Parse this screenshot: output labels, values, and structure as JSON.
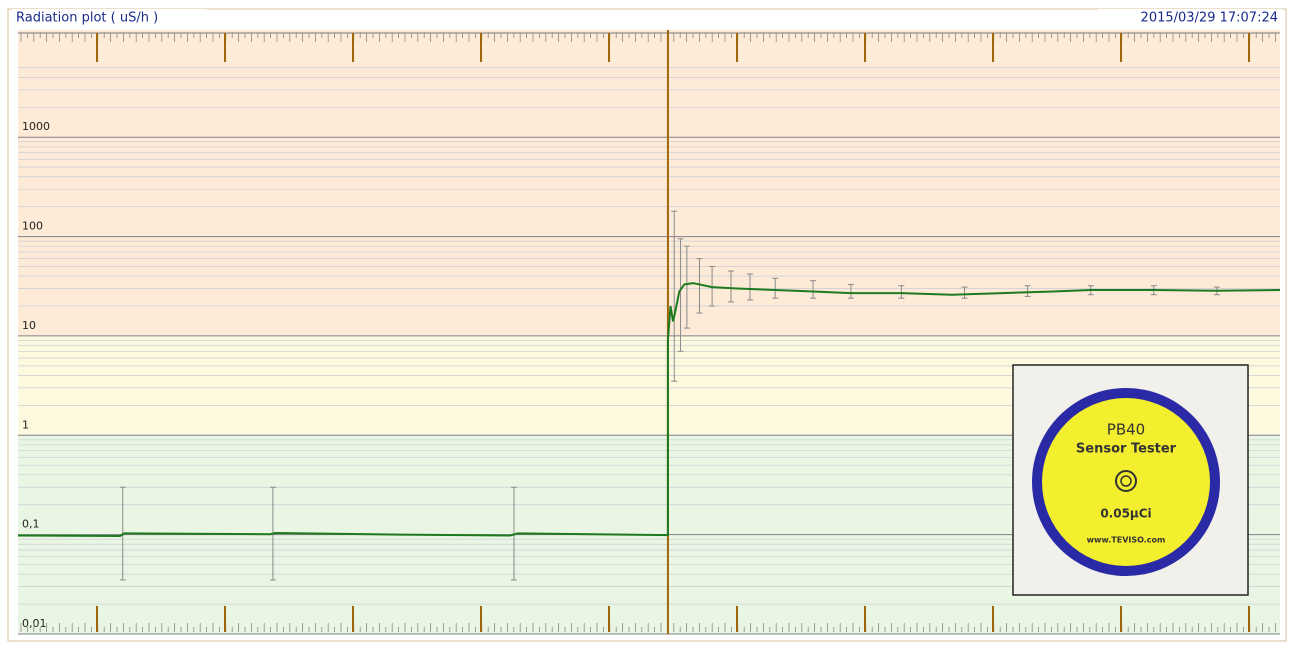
{
  "chart_data": {
    "type": "line",
    "title": "Radiation plot ( uS/h )",
    "timestamp": "2015/03/29 17:07:24",
    "log_y": true,
    "grid": true,
    "ylim": [
      0.01,
      12000
    ],
    "yticks": [
      {
        "value": 0.01,
        "label": "0,01"
      },
      {
        "value": 0.1,
        "label": "0,1"
      },
      1,
      10,
      100,
      1000
    ],
    "xlim": [
      0,
      100
    ],
    "background_zones": [
      {
        "from": 10,
        "to": 12000,
        "color": "#fdebd8"
      },
      {
        "from": 1,
        "to": 10,
        "color": "#fdf9df"
      },
      {
        "from": 0.01,
        "to": 1,
        "color": "#eaf6e4"
      }
    ],
    "marker_x": 51.5,
    "marker_color": "#a0660a",
    "series": [
      {
        "color": "#1e7a1e",
        "x": [
          0,
          8.1,
          8.4,
          19.97,
          20.4,
          30.3,
          39.0,
          39.6,
          51.5,
          51.5,
          51.7,
          51.9,
          52.1,
          52.4,
          52.8,
          53.5,
          55,
          57,
          60,
          63,
          66,
          70,
          74,
          78,
          82,
          85,
          90,
          95,
          100
        ],
        "values": [
          0.098,
          0.097,
          0.103,
          0.101,
          0.104,
          0.1,
          0.098,
          0.103,
          0.099,
          9,
          20,
          14,
          18,
          28,
          33,
          34,
          31,
          30,
          29,
          28,
          27,
          27,
          26,
          27,
          28,
          29,
          29,
          28.5,
          29
        ]
      }
    ],
    "error_bars": {
      "color": "#8a8a8a",
      "x": [
        8.3,
        20.2,
        39.3,
        52,
        52.5,
        53,
        54,
        55,
        56.5,
        58,
        60,
        63,
        66,
        70,
        75,
        80,
        85,
        90,
        95
      ],
      "low": [
        0.035,
        0.035,
        0.035,
        3.5,
        7,
        12,
        17,
        20,
        22,
        23,
        24,
        24,
        24,
        24,
        24,
        25,
        26,
        26,
        26
      ],
      "high": [
        0.3,
        0.3,
        0.3,
        180,
        95,
        80,
        60,
        50,
        45,
        42,
        38,
        36,
        33,
        32,
        31,
        32,
        32,
        32,
        31
      ]
    }
  },
  "inset": {
    "name": "PB40",
    "subtitle": "Sensor Tester",
    "activity": "0.05µCi",
    "website": "www.TEVISO.com"
  }
}
